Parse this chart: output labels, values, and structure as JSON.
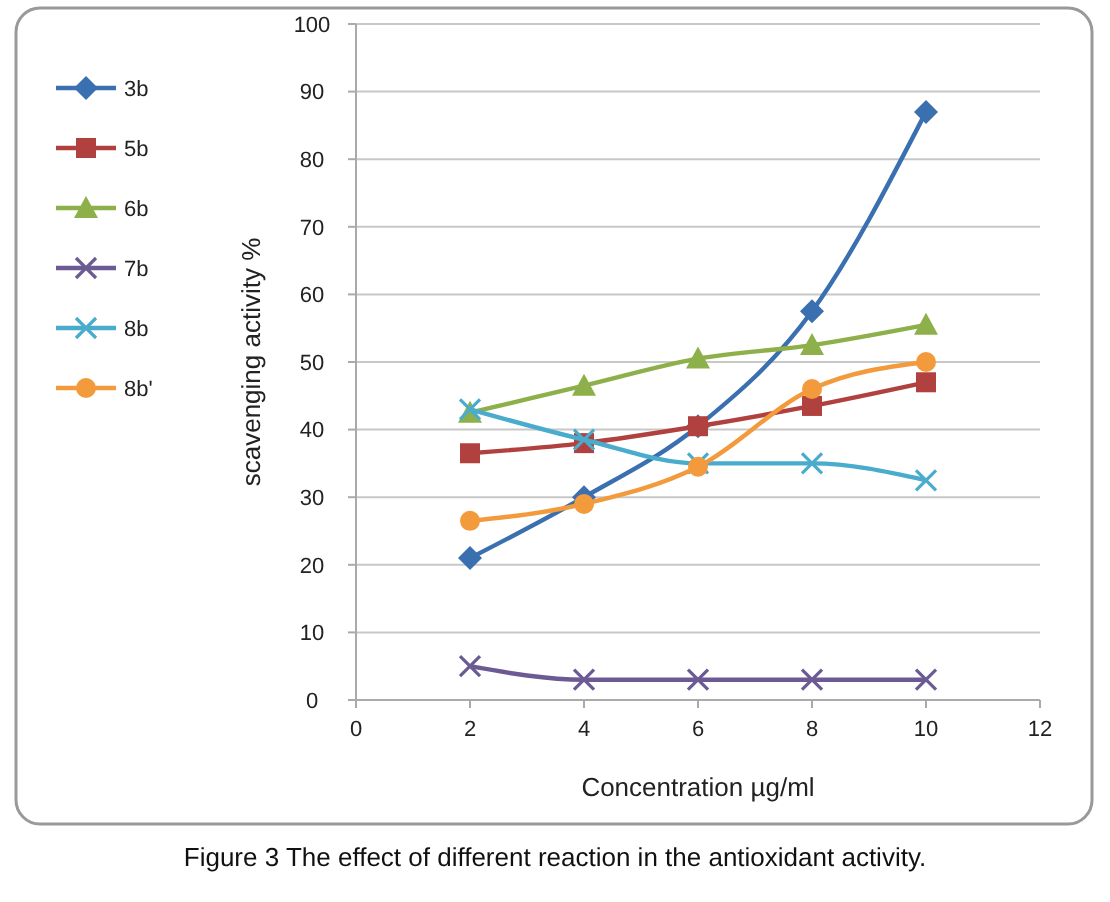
{
  "chart_data": {
    "type": "line",
    "xlabel": "Concentration µg/ml",
    "ylabel": "scavenging activity %",
    "x": [
      2,
      4,
      6,
      8,
      10
    ],
    "series": [
      {
        "name": "3b",
        "color": "#3a6fb0",
        "marker": "diamond",
        "values": [
          21,
          30,
          40.5,
          57.5,
          87
        ]
      },
      {
        "name": "5b",
        "color": "#b0413e",
        "marker": "square",
        "values": [
          36.5,
          38,
          40.5,
          43.5,
          47
        ]
      },
      {
        "name": "6b",
        "color": "#8db04a",
        "marker": "triangle",
        "values": [
          42.5,
          46.5,
          50.5,
          52.5,
          55.5
        ]
      },
      {
        "name": "7b",
        "color": "#6b5a93",
        "marker": "cross",
        "values": [
          5,
          3,
          3,
          3,
          3
        ]
      },
      {
        "name": "8b",
        "color": "#4aaccc",
        "marker": "cross",
        "values": [
          43,
          38.5,
          35,
          35,
          32.5
        ]
      },
      {
        "name": "8b'",
        "color": "#f39a3c",
        "marker": "circle",
        "values": [
          26.5,
          29,
          34.5,
          46,
          50
        ]
      }
    ],
    "xlim": [
      0,
      12
    ],
    "xticks": [
      0,
      2,
      4,
      6,
      8,
      10,
      12
    ],
    "ylim": [
      0,
      100
    ],
    "yticks": [
      0,
      10,
      20,
      30,
      40,
      50,
      60,
      70,
      80,
      90,
      100
    ],
    "grid": "y",
    "legend": "left",
    "line_style": "solid",
    "annotations": [
      "Figure 3 The effect of different reaction in the antioxidant activity."
    ]
  }
}
